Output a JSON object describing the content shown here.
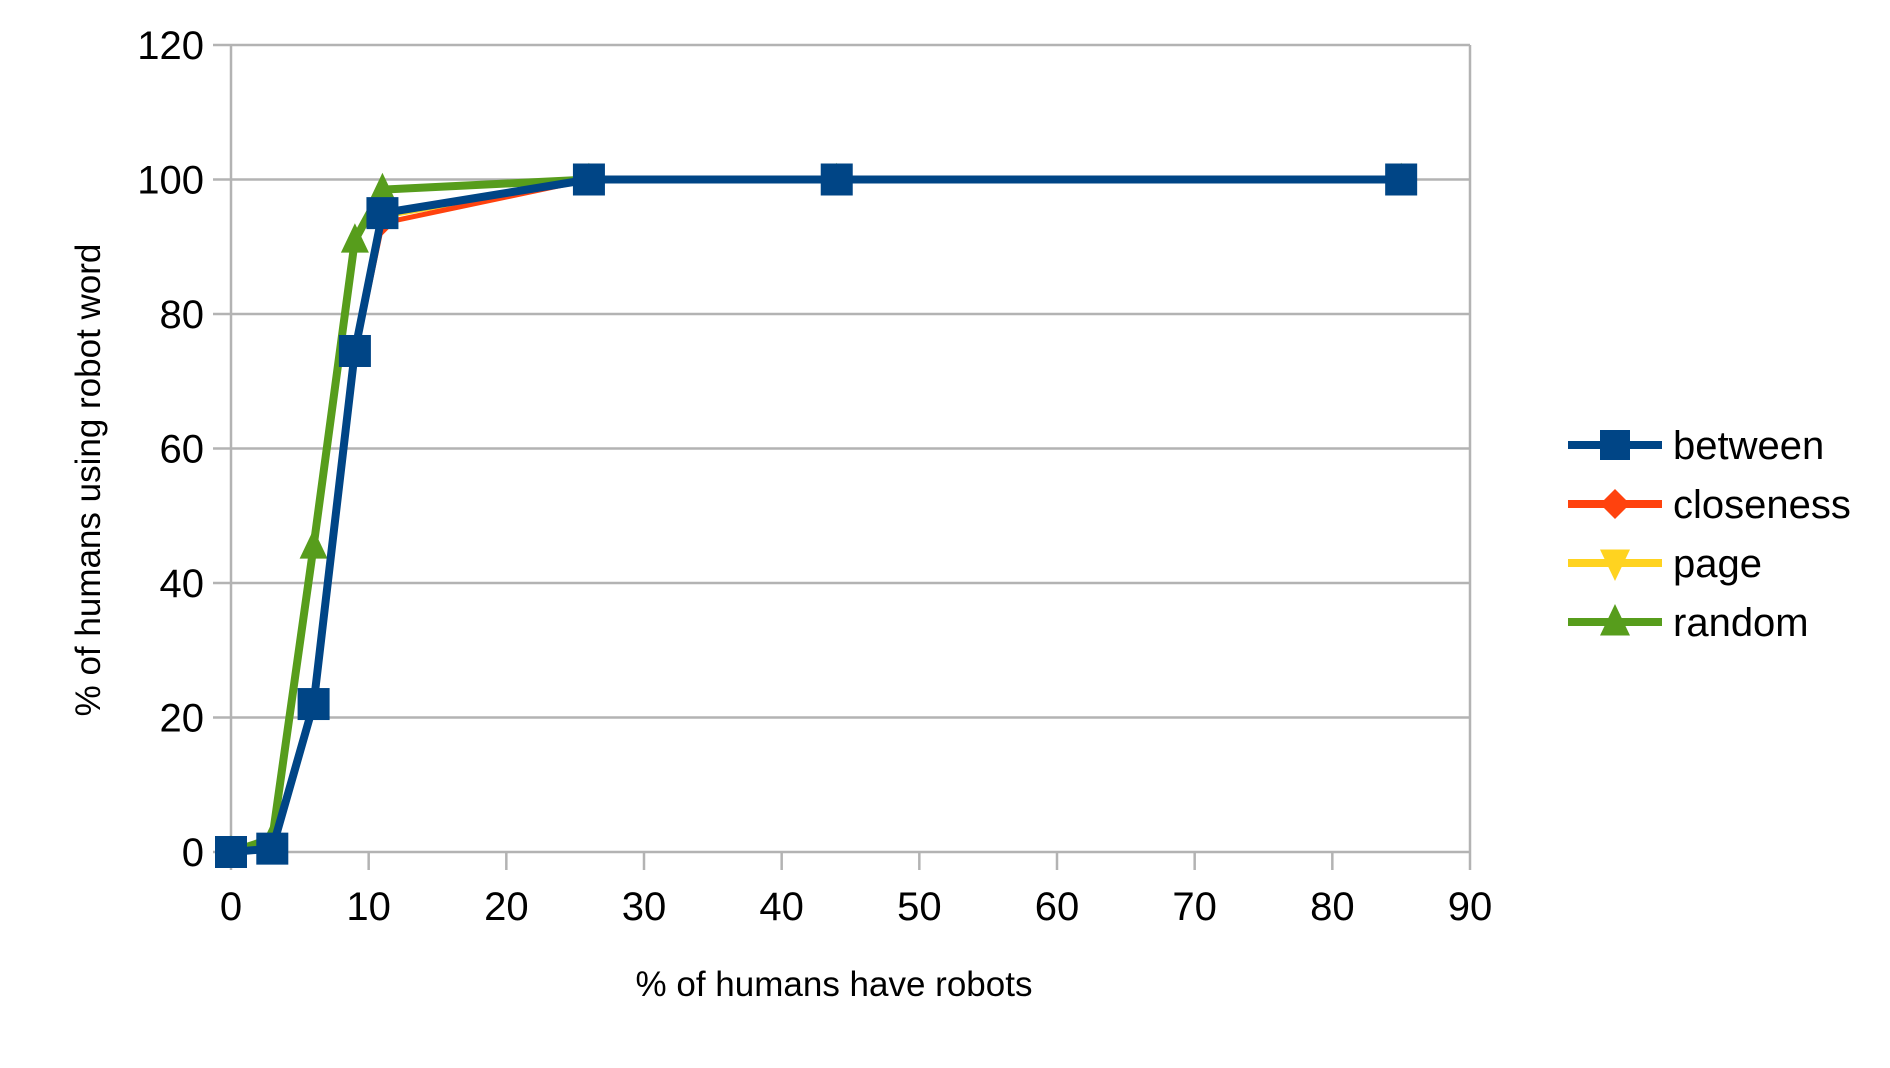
{
  "chart_data": {
    "type": "line",
    "title": "",
    "xlabel": "% of humans have robots",
    "ylabel": "% of humans using robot word",
    "xlim": [
      0,
      90
    ],
    "ylim": [
      0,
      120
    ],
    "x_ticks": [
      0,
      10,
      20,
      30,
      40,
      50,
      60,
      70,
      80,
      90
    ],
    "y_ticks": [
      0,
      20,
      40,
      60,
      80,
      100,
      120
    ],
    "grid": {
      "horizontal": true,
      "vertical": false
    },
    "legend_position": "right",
    "series": [
      {
        "name": "page",
        "color": "#ffd320",
        "marker": "triangle-down",
        "x": [
          0,
          3,
          6,
          9,
          11,
          26,
          44,
          85
        ],
        "y": [
          0,
          0.5,
          22,
          74.5,
          94.5,
          100,
          100,
          100
        ]
      },
      {
        "name": "random",
        "color": "#579d1c",
        "marker": "triangle-up",
        "x": [
          0,
          3,
          6,
          9,
          11,
          26,
          44,
          85
        ],
        "y": [
          0,
          2,
          45.5,
          91,
          98.5,
          100,
          100,
          100
        ]
      },
      {
        "name": "closeness",
        "color": "#ff420e",
        "marker": "diamond",
        "x": [
          0,
          3,
          6,
          9,
          11,
          26,
          44,
          85
        ],
        "y": [
          0,
          0.5,
          21.5,
          74,
          93.5,
          100,
          100,
          100
        ]
      },
      {
        "name": "between",
        "color": "#004586",
        "marker": "square",
        "x": [
          0,
          3,
          6,
          9,
          11,
          26,
          44,
          85
        ],
        "y": [
          0,
          0.5,
          22,
          74.5,
          95,
          100,
          100,
          100
        ]
      }
    ],
    "legend_order": [
      "between",
      "closeness",
      "page",
      "random"
    ]
  }
}
